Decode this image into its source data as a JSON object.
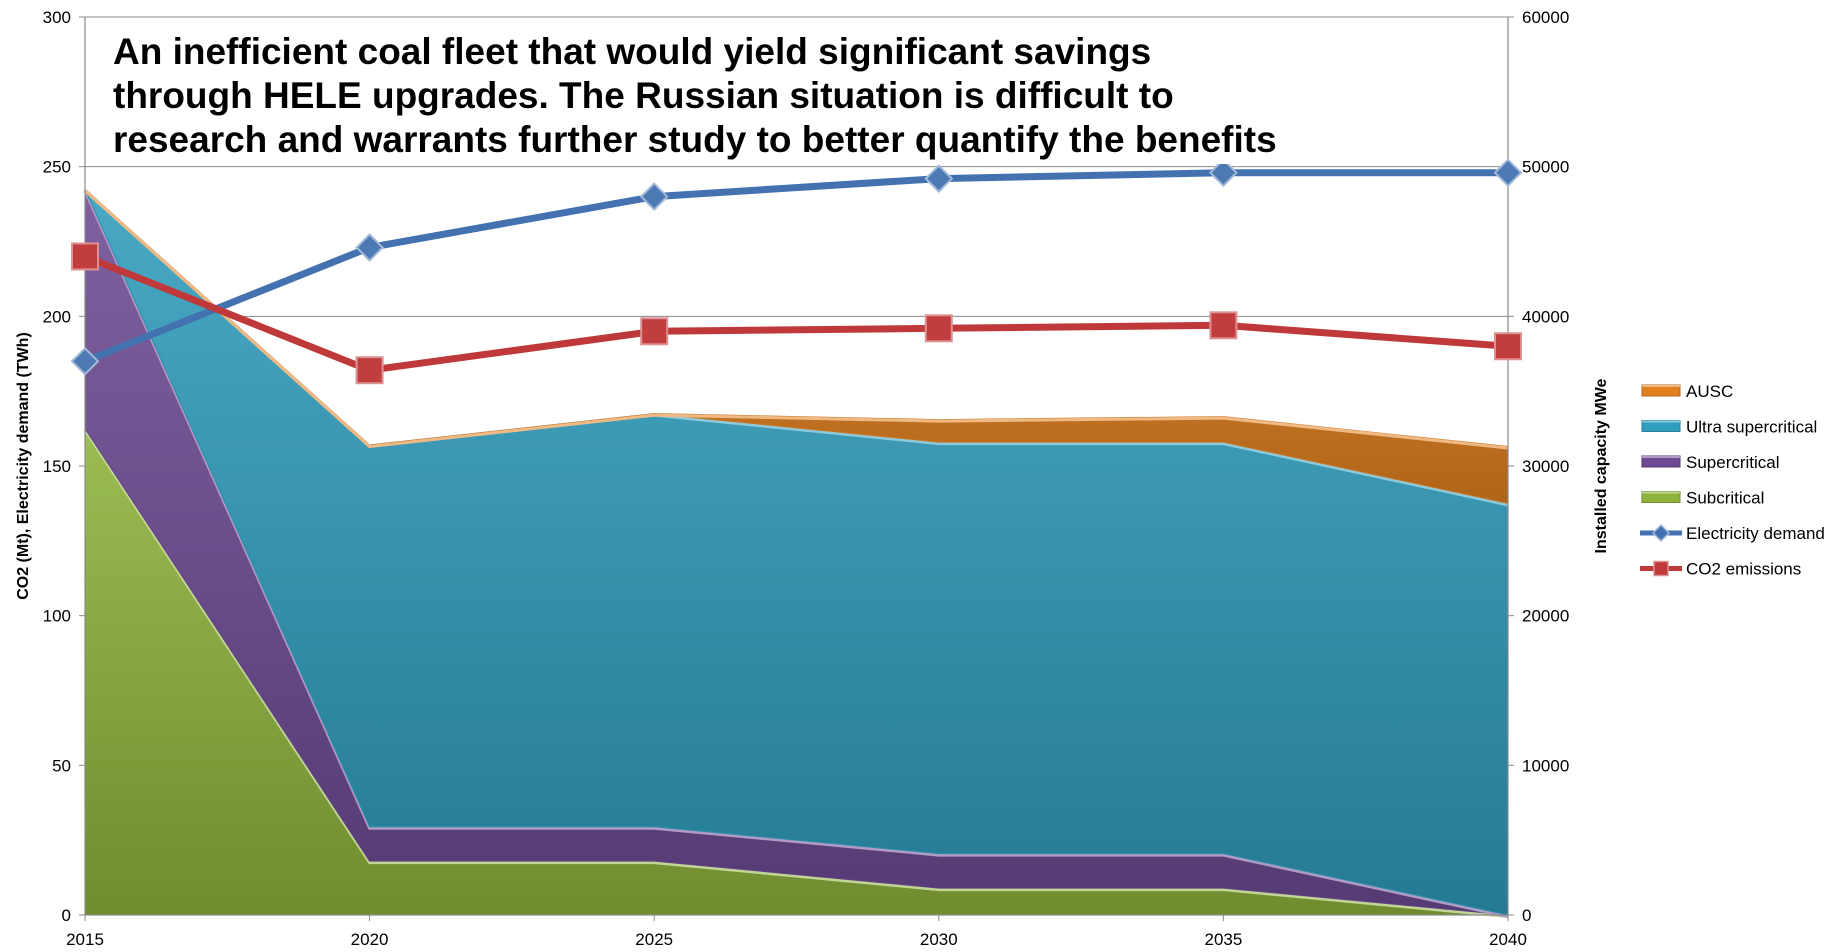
{
  "chart_data": {
    "type": "area",
    "title_lines": [
      "An inefficient coal fleet that would yield significant savings",
      "through HELE upgrades. The Russian situation is difficult to",
      "research and warrants further study to better quantify the benefits"
    ],
    "x": [
      2015,
      2020,
      2025,
      2030,
      2035,
      2040
    ],
    "x_tick_labels": [
      "2015",
      "2020",
      "2025",
      "2030",
      "2035",
      "2040"
    ],
    "ylabel_left": "CO2  (Mt), Electricity demand (TWh)",
    "ylabel_right": "Installed capacity MWe",
    "ylim_left": [
      0,
      300
    ],
    "ylim_right": [
      0,
      60000
    ],
    "y_left_ticks": [
      "0",
      "50",
      "100",
      "150",
      "200",
      "250",
      "300"
    ],
    "y_right_ticks": [
      "0",
      "10000",
      "20000",
      "30000",
      "40000",
      "50000",
      "60000"
    ],
    "grid": true,
    "legend_position": "right",
    "area_series": [
      {
        "name": "Subcritical",
        "axis": "right",
        "values": [
          32500,
          3600,
          3600,
          1800,
          1800,
          0
        ],
        "color": "#8fb33c"
      },
      {
        "name": "Supercritical",
        "axis": "right",
        "values": [
          16000,
          2300,
          2300,
          2300,
          2300,
          0
        ],
        "color": "#6d4a93"
      },
      {
        "name": "Ultra supercritical",
        "axis": "right",
        "values": [
          0,
          25500,
          27600,
          27500,
          27500,
          27500
        ],
        "color": "#2f9dbd"
      },
      {
        "name": "AUSC",
        "axis": "right",
        "values": [
          0,
          0,
          0,
          1500,
          1700,
          3800
        ],
        "color": "#e2801f"
      }
    ],
    "line_series": [
      {
        "name": "Electricity demand",
        "axis": "left",
        "values": [
          185,
          223,
          240,
          246,
          248,
          248
        ],
        "color": "#4472b0",
        "marker": "diamond"
      },
      {
        "name": "CO2 emissions",
        "axis": "left",
        "values": [
          220,
          182,
          195,
          196,
          197,
          190
        ],
        "color": "#c0393a",
        "marker": "square"
      }
    ],
    "legend_order": [
      "AUSC",
      "Ultra supercritical",
      "Supercritical",
      "Subcritical",
      "Electricity demand",
      "CO2 emissions"
    ]
  }
}
